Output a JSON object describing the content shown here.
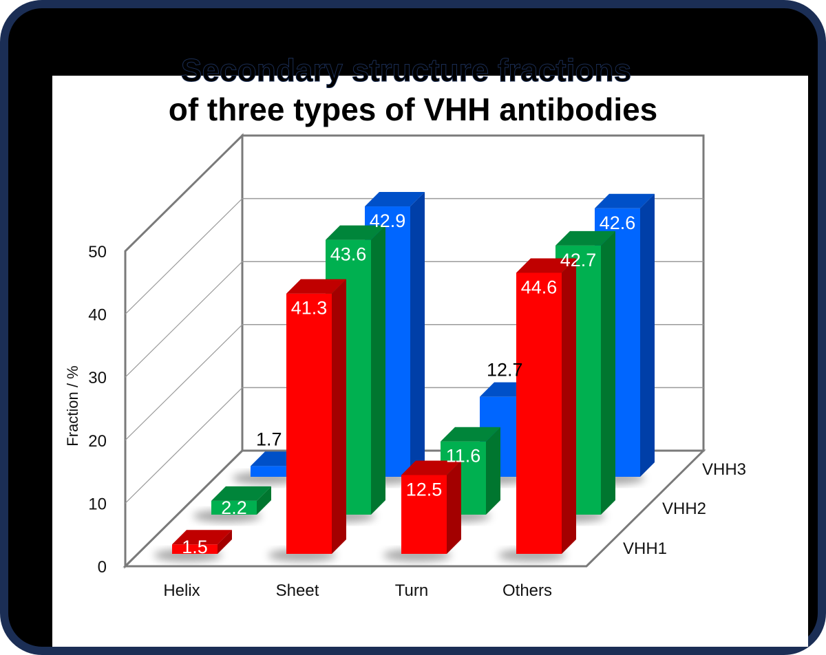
{
  "frame": {
    "border_color": "#1b2e55",
    "background": "#000000",
    "panel": "#ffffff"
  },
  "title": {
    "line1": "Secondary structure fractions",
    "line2": "of three types of VHH antibodies"
  },
  "chart_data": {
    "type": "bar",
    "subtype": "3d-clustered-depth",
    "title": "Secondary structure fractions of three types of VHH antibodies",
    "xlabel": "",
    "ylabel": "Fraction / %",
    "ylim": [
      0,
      50
    ],
    "yticks": [
      0,
      10,
      20,
      30,
      40,
      50
    ],
    "grid": true,
    "categories": [
      "Helix",
      "Sheet",
      "Turn",
      "Others"
    ],
    "series": [
      {
        "name": "VHH1",
        "color": "#ff0000",
        "side": "#a30000",
        "top": "#c00000",
        "values": [
          1.5,
          41.3,
          12.5,
          44.6
        ]
      },
      {
        "name": "VHH2",
        "color": "#00b050",
        "side": "#00762f",
        "top": "#00853a",
        "values": [
          2.2,
          43.6,
          11.6,
          42.7
        ]
      },
      {
        "name": "VHH3",
        "color": "#0066ff",
        "side": "#003fa8",
        "top": "#0050c8",
        "values": [
          1.7,
          42.9,
          12.7,
          42.6
        ]
      }
    ],
    "data_labels": [
      [
        "1.5",
        "41.3",
        "12.5",
        "44.6"
      ],
      [
        "2.2",
        "43.6",
        "11.6",
        "42.7"
      ],
      [
        "1.7",
        "42.9",
        "12.7",
        "42.6"
      ]
    ],
    "legend_position": "depth-axis-right"
  }
}
